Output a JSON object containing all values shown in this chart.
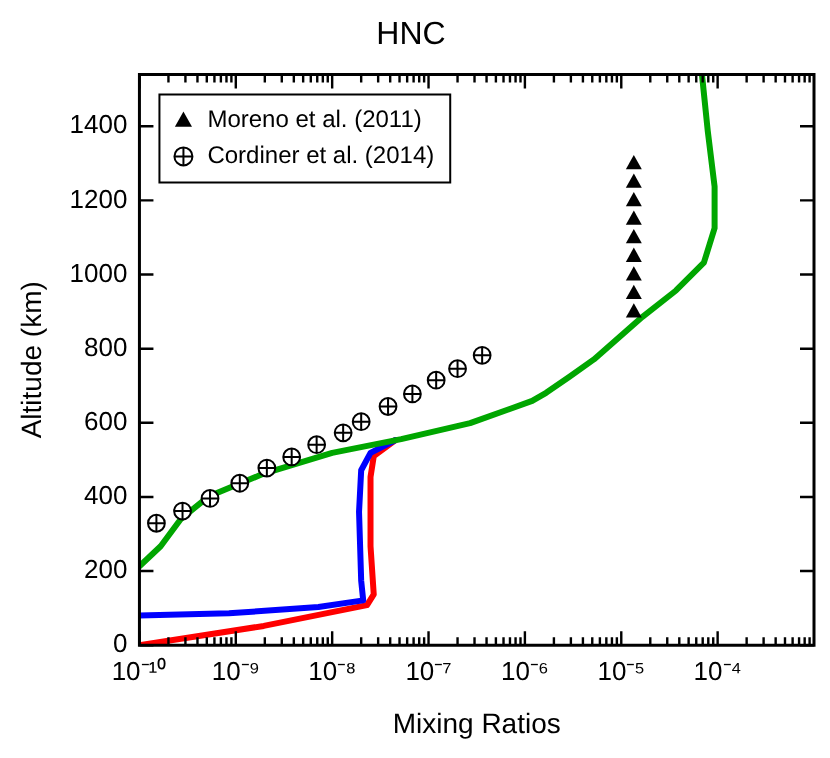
{
  "chart_data": {
    "type": "line",
    "title": "HNC",
    "xlabel": "Mixing Ratios",
    "ylabel": "Altitude (km)",
    "log": "x",
    "grid": false,
    "legend": "top left",
    "xlim": [
      1e-10,
      0.001
    ],
    "xticks": [
      {
        "value": 1e-10,
        "label": "10⁻¹⁰"
      },
      {
        "value": 2e-10,
        "label": null
      },
      {
        "value": 3e-10,
        "label": null
      },
      {
        "value": 4e-10,
        "label": null
      },
      {
        "value": 5e-10,
        "label": null
      },
      {
        "value": 6e-10,
        "label": null
      },
      {
        "value": 7e-10,
        "label": null
      },
      {
        "value": 8e-10,
        "label": null
      },
      {
        "value": 9e-10,
        "label": null
      },
      {
        "value": 1e-09,
        "label": "10⁻⁹"
      },
      {
        "value": 2e-09,
        "label": null
      },
      {
        "value": 3e-09,
        "label": null
      },
      {
        "value": 4e-09,
        "label": null
      },
      {
        "value": 5e-09,
        "label": null
      },
      {
        "value": 6e-09,
        "label": null
      },
      {
        "value": 7e-09,
        "label": null
      },
      {
        "value": 8e-09,
        "label": null
      },
      {
        "value": 9e-09,
        "label": null
      },
      {
        "value": 1e-08,
        "label": "10⁻⁸"
      },
      {
        "value": 2e-08,
        "label": null
      },
      {
        "value": 3e-08,
        "label": null
      },
      {
        "value": 4e-08,
        "label": null
      },
      {
        "value": 5e-08,
        "label": null
      },
      {
        "value": 6e-08,
        "label": null
      },
      {
        "value": 7e-08,
        "label": null
      },
      {
        "value": 8e-08,
        "label": null
      },
      {
        "value": 9e-08,
        "label": null
      },
      {
        "value": 1e-07,
        "label": "10⁻⁷"
      },
      {
        "value": 2e-07,
        "label": null
      },
      {
        "value": 3e-07,
        "label": null
      },
      {
        "value": 4e-07,
        "label": null
      },
      {
        "value": 5e-07,
        "label": null
      },
      {
        "value": 6e-07,
        "label": null
      },
      {
        "value": 7e-07,
        "label": null
      },
      {
        "value": 8e-07,
        "label": null
      },
      {
        "value": 9e-07,
        "label": null
      },
      {
        "value": 1e-06,
        "label": "10⁻⁶"
      },
      {
        "value": 2e-06,
        "label": null
      },
      {
        "value": 3e-06,
        "label": null
      },
      {
        "value": 4e-06,
        "label": null
      },
      {
        "value": 5e-06,
        "label": null
      },
      {
        "value": 6e-06,
        "label": null
      },
      {
        "value": 7e-06,
        "label": null
      },
      {
        "value": 8e-06,
        "label": null
      },
      {
        "value": 9e-06,
        "label": null
      },
      {
        "value": 1e-05,
        "label": "10⁻⁵"
      },
      {
        "value": 2e-05,
        "label": null
      },
      {
        "value": 3e-05,
        "label": null
      },
      {
        "value": 4e-05,
        "label": null
      },
      {
        "value": 5e-05,
        "label": null
      },
      {
        "value": 6e-05,
        "label": null
      },
      {
        "value": 7e-05,
        "label": null
      },
      {
        "value": 8e-05,
        "label": null
      },
      {
        "value": 9e-05,
        "label": null
      },
      {
        "value": 0.0001,
        "label": "10⁻⁴"
      },
      {
        "value": 0.0002,
        "label": null
      },
      {
        "value": 0.0003,
        "label": null
      },
      {
        "value": 0.0004,
        "label": null
      },
      {
        "value": 0.0005,
        "label": null
      },
      {
        "value": 0.0006,
        "label": null
      },
      {
        "value": 0.0007,
        "label": null
      },
      {
        "value": 0.0008,
        "label": null
      },
      {
        "value": 0.0009,
        "label": null
      }
    ],
    "ylim": [
      0,
      1540
    ],
    "yticks": [
      0,
      200,
      400,
      600,
      800,
      1000,
      1200,
      1400
    ],
    "series": [
      {
        "type": "line",
        "color": "#ff0000",
        "line_style": "solid",
        "x": [
          1e-10,
          1.95e-09,
          2.3e-08,
          2.7e-08,
          2.5e-08,
          2.5e-08,
          2.7e-08,
          4.5e-08
        ],
        "values": [
          0,
          52,
          108,
          137,
          267,
          454,
          510,
          553
        ]
      },
      {
        "type": "line",
        "color": "#0000ff",
        "line_style": "solid",
        "x": [
          1e-10,
          8.5e-10,
          7.2e-09,
          2.1e-08,
          2e-08,
          1.9e-08,
          2e-08,
          2.5e-08,
          4.5e-08
        ],
        "values": [
          80,
          86,
          103,
          121,
          174,
          360,
          472,
          519,
          553
        ]
      },
      {
        "type": "line",
        "color": "#00a600",
        "line_style": "solid",
        "x": [
          1e-10,
          1.66e-10,
          2.7e-10,
          5.2e-10,
          1.95e-09,
          1e-08,
          5.2e-08,
          2.7e-07,
          1.19e-06,
          1.66e-06,
          2.9e-06,
          5.2e-06,
          1.66e-05,
          3.7e-05,
          7.2e-05,
          9.3e-05,
          9.3e-05,
          7.9e-05,
          6.9e-05
        ],
        "values": [
          213,
          267,
          341,
          401,
          463,
          519,
          556,
          599,
          659,
          681,
          724,
          771,
          886,
          957,
          1032,
          1125,
          1237,
          1387,
          1536
        ]
      },
      {
        "type": "scatter",
        "name": "Moreno et al. (2011)",
        "color": "#000000",
        "marker": "triangle",
        "x": [
          1.35e-05,
          1.35e-05,
          1.35e-05,
          1.35e-05,
          1.35e-05,
          1.35e-05,
          1.35e-05,
          1.35e-05,
          1.35e-05
        ],
        "values": [
          900,
          950,
          1000,
          1050,
          1100,
          1150,
          1200,
          1250,
          1300
        ]
      },
      {
        "type": "scatter",
        "name": "Cordiner et al. (2014)",
        "color": "#000000",
        "marker": "circle",
        "x": [
          1.5e-10,
          2.8e-10,
          5.4e-10,
          1.1e-09,
          2.1e-09,
          3.8e-09,
          6.9e-09,
          1.3e-08,
          2e-08,
          3.8e-08,
          6.8e-08,
          1.2e-07,
          2e-07,
          3.6e-07
        ],
        "values": [
          329,
          362,
          396,
          437,
          478,
          508,
          541,
          573,
          603,
          644,
          678,
          715,
          746,
          782
        ]
      }
    ]
  }
}
